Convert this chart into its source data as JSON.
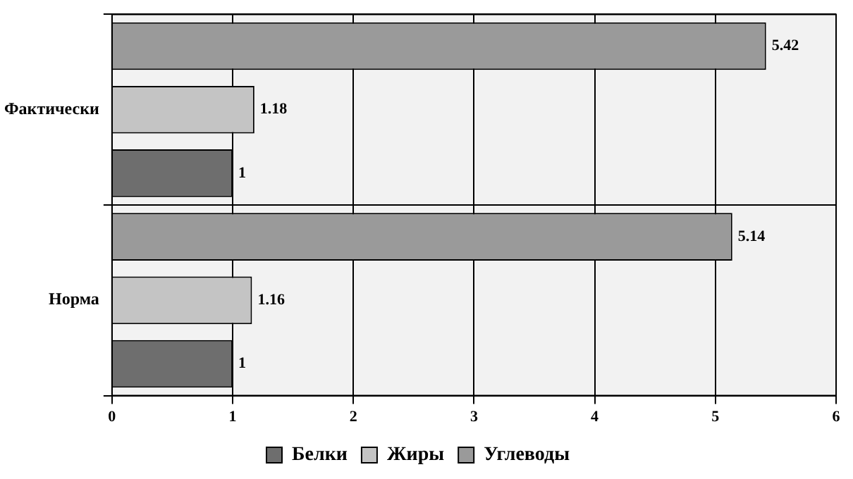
{
  "chart_data": {
    "type": "bar",
    "orientation": "horizontal",
    "categories": [
      "Фактически",
      "Норма"
    ],
    "series": [
      {
        "name": "Белки",
        "color": "#6e6e6e",
        "values": [
          1,
          1
        ]
      },
      {
        "name": "Жиры",
        "color": "#c4c4c4",
        "values": [
          1.18,
          1.16
        ]
      },
      {
        "name": "Углеводы",
        "color": "#9a9a9a",
        "values": [
          5.42,
          5.14
        ]
      }
    ],
    "xlim": [
      0,
      6
    ],
    "xticks": [
      0,
      1,
      2,
      3,
      4,
      5,
      6
    ],
    "grid": true,
    "legend": "bottom",
    "data_labels": true
  }
}
